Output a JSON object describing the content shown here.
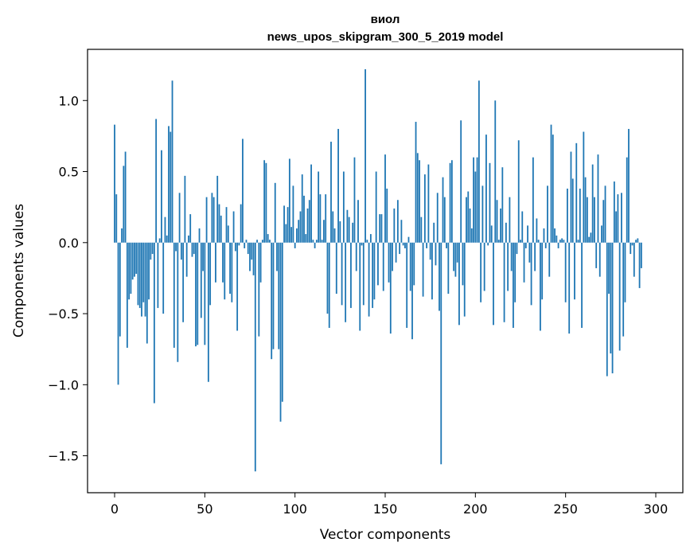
{
  "chart_data": {
    "type": "bar",
    "title_line1": "виол",
    "title_line2": "news_upos_skipgram_300_5_2019 model",
    "xlabel": "Vector components",
    "ylabel": "Components values",
    "xlim": [
      -15,
      315
    ],
    "ylim": [
      -1.76,
      1.36
    ],
    "x_ticks": [
      0,
      50,
      100,
      150,
      200,
      250,
      300
    ],
    "y_ticks": [
      -1.5,
      -1.0,
      -0.5,
      0.0,
      0.5,
      1.0
    ],
    "y_tick_labels": [
      "−1.5",
      "−1.0",
      "−0.5",
      "0.0",
      "0.5",
      "1.0"
    ],
    "bar_color": "#1f77b4",
    "grid": false,
    "values": [
      0.83,
      0.34,
      -1.0,
      -0.66,
      0.1,
      0.54,
      0.64,
      -0.74,
      -0.4,
      -0.36,
      -0.26,
      -0.24,
      -0.22,
      -0.44,
      -0.46,
      -0.52,
      -0.42,
      -0.52,
      -0.71,
      -0.4,
      -0.12,
      -0.08,
      -1.13,
      0.87,
      -0.46,
      0.03,
      0.65,
      -0.5,
      0.18,
      0.05,
      0.82,
      0.78,
      1.14,
      -0.74,
      -0.06,
      -0.84,
      0.35,
      -0.12,
      -0.56,
      0.47,
      -0.24,
      0.05,
      0.2,
      -0.1,
      -0.08,
      -0.73,
      -0.72,
      0.1,
      -0.53,
      -0.2,
      -0.72,
      0.32,
      -0.98,
      -0.44,
      0.35,
      0.32,
      -0.28,
      0.47,
      0.27,
      0.19,
      -0.28,
      -0.4,
      0.25,
      0.12,
      -0.36,
      -0.42,
      0.22,
      -0.06,
      -0.62,
      -0.02,
      0.27,
      0.73,
      -0.04,
      0.02,
      -0.08,
      -0.2,
      -0.12,
      -0.23,
      -1.61,
      0.02,
      -0.66,
      -0.28,
      0.02,
      0.58,
      0.56,
      0.06,
      0.02,
      -0.82,
      -0.75,
      0.42,
      -0.2,
      -0.75,
      -1.26,
      -1.12,
      0.26,
      0.13,
      0.25,
      0.59,
      0.11,
      0.4,
      -0.04,
      0.1,
      0.16,
      0.22,
      0.48,
      0.33,
      0.06,
      0.24,
      0.3,
      0.55,
      0.02,
      -0.04,
      0.02,
      0.5,
      0.34,
      0.02,
      0.16,
      0.34,
      -0.5,
      -0.6,
      0.71,
      0.22,
      0.1,
      -0.36,
      0.8,
      0.15,
      -0.44,
      0.5,
      -0.56,
      0.23,
      0.18,
      -0.46,
      0.14,
      0.6,
      -0.2,
      0.3,
      -0.62,
      -0.02,
      -0.44,
      1.22,
      0.02,
      -0.52,
      0.06,
      -0.46,
      -0.4,
      0.5,
      -0.3,
      0.2,
      0.2,
      -0.34,
      0.62,
      0.38,
      -0.28,
      -0.64,
      -0.2,
      0.24,
      -0.14,
      0.3,
      -0.08,
      0.16,
      -0.02,
      -0.04,
      -0.6,
      0.04,
      -0.34,
      -0.68,
      -0.3,
      0.85,
      0.63,
      0.58,
      0.18,
      -0.38,
      0.48,
      -0.04,
      0.55,
      -0.12,
      -0.4,
      0.14,
      -0.16,
      0.35,
      -0.48,
      -1.56,
      0.46,
      0.32,
      -0.04,
      -0.36,
      0.56,
      0.58,
      -0.2,
      -0.24,
      -0.14,
      -0.58,
      0.86,
      -0.3,
      -0.52,
      0.32,
      0.36,
      0.24,
      0.1,
      0.6,
      0.5,
      0.6,
      1.14,
      -0.42,
      0.4,
      -0.34,
      0.76,
      -0.02,
      0.56,
      0.12,
      -0.58,
      1.0,
      0.3,
      0.02,
      0.24,
      0.53,
      -0.56,
      0.14,
      -0.34,
      0.32,
      -0.2,
      -0.6,
      -0.42,
      -0.08,
      0.72,
      0.02,
      0.22,
      -0.28,
      -0.04,
      0.12,
      -0.14,
      -0.44,
      0.6,
      -0.2,
      0.17,
      0.02,
      -0.62,
      -0.4,
      0.1,
      -0.04,
      0.4,
      -0.24,
      0.83,
      0.76,
      0.1,
      0.05,
      -0.04,
      0.02,
      0.03,
      0.02,
      -0.42,
      0.38,
      -0.64,
      0.64,
      0.45,
      -0.4,
      0.7,
      0.02,
      0.38,
      -0.6,
      0.78,
      0.46,
      0.32,
      0.04,
      0.07,
      0.55,
      0.32,
      -0.18,
      0.62,
      -0.24,
      0.12,
      0.3,
      0.4,
      -0.94,
      -0.36,
      -0.78,
      -0.92,
      0.43,
      0.22,
      0.34,
      -0.76,
      0.35,
      -0.66,
      -0.42,
      0.6,
      0.8,
      -0.08,
      -0.02,
      -0.24,
      0.02,
      0.03,
      -0.32,
      -0.18
    ]
  }
}
